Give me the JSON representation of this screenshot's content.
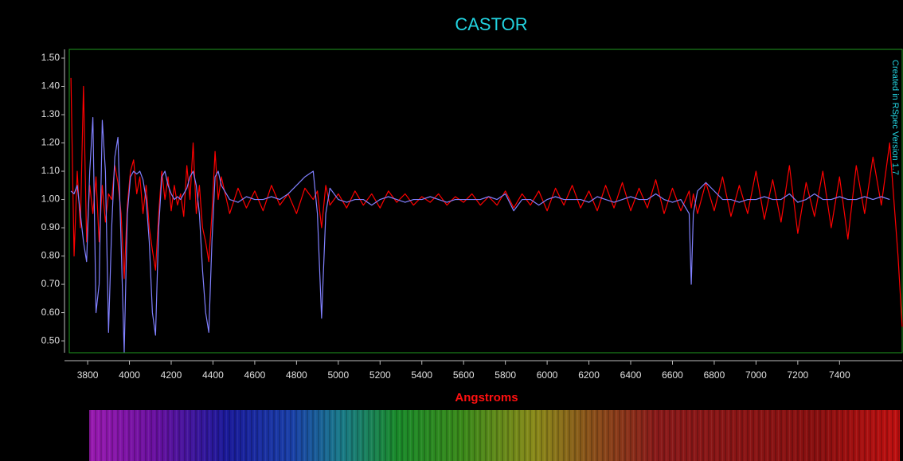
{
  "chart_data": {
    "type": "line",
    "title": "CASTOR",
    "x_label": "Angstroms",
    "annotation": "Created in RSpec Version 1.7",
    "x": [
      3720,
      3735,
      3750,
      3765,
      3780,
      3795,
      3810,
      3825,
      3840,
      3855,
      3870,
      3885,
      3900,
      3915,
      3930,
      3945,
      3960,
      3975,
      3990,
      4005,
      4020,
      4035,
      4050,
      4065,
      4080,
      4095,
      4110,
      4125,
      4140,
      4155,
      4170,
      4185,
      4200,
      4215,
      4230,
      4245,
      4260,
      4275,
      4290,
      4305,
      4320,
      4335,
      4350,
      4365,
      4380,
      4395,
      4410,
      4425,
      4440,
      4480,
      4520,
      4560,
      4600,
      4640,
      4680,
      4720,
      4760,
      4800,
      4840,
      4880,
      4900,
      4920,
      4940,
      4960,
      5000,
      5040,
      5080,
      5120,
      5160,
      5200,
      5240,
      5280,
      5320,
      5360,
      5400,
      5440,
      5480,
      5520,
      5560,
      5600,
      5640,
      5680,
      5720,
      5760,
      5800,
      5840,
      5880,
      5920,
      5960,
      6000,
      6040,
      6080,
      6120,
      6160,
      6200,
      6240,
      6280,
      6320,
      6360,
      6400,
      6440,
      6480,
      6520,
      6560,
      6600,
      6640,
      6680,
      6690,
      6700,
      6720,
      6760,
      6800,
      6840,
      6880,
      6920,
      6960,
      7000,
      7040,
      7080,
      7120,
      7160,
      7200,
      7240,
      7280,
      7320,
      7360,
      7400,
      7440,
      7480,
      7520,
      7560,
      7600,
      7640,
      7680,
      7700
    ],
    "series": [
      {
        "color": "#ff0000",
        "values": [
          1.43,
          0.8,
          1.1,
          0.9,
          1.4,
          0.85,
          1.05,
          0.95,
          1.08,
          0.85,
          1.05,
          0.92,
          1.02,
          1.0,
          1.12,
          1.06,
          0.95,
          0.72,
          0.98,
          1.1,
          1.14,
          1.02,
          1.08,
          0.95,
          1.05,
          0.9,
          0.82,
          0.75,
          0.95,
          1.1,
          1.0,
          1.08,
          0.96,
          1.05,
          0.98,
          1.02,
          0.94,
          1.12,
          1.0,
          1.2,
          0.95,
          1.05,
          0.9,
          0.85,
          0.78,
          0.95,
          1.17,
          1.0,
          1.08,
          0.95,
          1.04,
          0.97,
          1.03,
          0.96,
          1.05,
          0.98,
          1.02,
          0.95,
          1.04,
          1.0,
          1.03,
          0.9,
          1.05,
          0.98,
          1.02,
          0.97,
          1.03,
          0.98,
          1.02,
          0.97,
          1.03,
          0.99,
          1.02,
          0.98,
          1.01,
          0.99,
          1.02,
          0.98,
          1.01,
          0.99,
          1.02,
          0.98,
          1.01,
          0.98,
          1.03,
          0.97,
          1.02,
          0.98,
          1.03,
          0.96,
          1.04,
          0.98,
          1.05,
          0.97,
          1.03,
          0.96,
          1.05,
          0.97,
          1.06,
          0.96,
          1.04,
          0.97,
          1.07,
          0.95,
          1.04,
          0.96,
          1.03,
          0.97,
          1.02,
          0.95,
          1.06,
          0.96,
          1.08,
          0.94,
          1.05,
          0.95,
          1.1,
          0.93,
          1.07,
          0.92,
          1.12,
          0.88,
          1.06,
          0.94,
          1.1,
          0.9,
          1.08,
          0.86,
          1.12,
          0.95,
          1.15,
          0.98,
          1.2,
          0.8,
          0.55
        ]
      },
      {
        "color": "#8080ff",
        "values": [
          1.03,
          1.02,
          1.05,
          0.95,
          0.85,
          0.78,
          1.1,
          1.29,
          0.6,
          0.7,
          1.28,
          1.1,
          0.53,
          0.9,
          1.15,
          1.22,
          0.85,
          0.46,
          0.95,
          1.08,
          1.1,
          1.09,
          1.1,
          1.07,
          1.0,
          0.85,
          0.6,
          0.52,
          0.9,
          1.08,
          1.1,
          1.05,
          1.02,
          1.0,
          1.01,
          1.0,
          1.02,
          1.04,
          1.08,
          1.1,
          1.05,
          0.95,
          0.75,
          0.6,
          0.53,
          0.85,
          1.08,
          1.1,
          1.05,
          1.0,
          0.99,
          1.01,
          1.0,
          1.0,
          1.01,
          1.0,
          1.02,
          1.05,
          1.08,
          1.1,
          0.95,
          0.58,
          0.95,
          1.04,
          1.0,
          0.99,
          1.0,
          1.0,
          0.98,
          1.0,
          1.01,
          1.0,
          0.99,
          1.0,
          1.0,
          1.01,
          1.0,
          0.99,
          1.0,
          1.0,
          1.0,
          1.0,
          1.01,
          1.0,
          1.02,
          0.96,
          1.0,
          1.0,
          0.98,
          1.0,
          1.01,
          1.0,
          1.0,
          1.0,
          0.99,
          1.01,
          1.0,
          0.99,
          1.0,
          1.01,
          1.0,
          1.0,
          1.02,
          1.0,
          0.99,
          1.0,
          0.95,
          0.7,
          0.95,
          1.03,
          1.06,
          1.03,
          1.0,
          1.0,
          0.99,
          1.0,
          1.0,
          1.01,
          1.0,
          1.0,
          1.02,
          0.99,
          1.0,
          1.02,
          1.0,
          1.0,
          1.01,
          1.0,
          1.0,
          1.01,
          1.0,
          1.01,
          1.0,
          null,
          null
        ]
      }
    ],
    "xlim": [
      3712,
      7700
    ],
    "ylim": [
      0.458,
      1.531
    ],
    "xticks": [
      3800,
      4000,
      4200,
      4400,
      4600,
      4800,
      5000,
      5200,
      5400,
      5600,
      5800,
      6000,
      6200,
      6400,
      6600,
      6800,
      7000,
      7200,
      7400
    ],
    "yticks": [
      {
        "value": 0.5,
        "label": "0.50"
      },
      {
        "value": 0.6,
        "label": "0.60"
      },
      {
        "value": 0.7,
        "label": "0.70"
      },
      {
        "value": 0.8,
        "label": "0.80"
      },
      {
        "value": 0.9,
        "label": "0.90"
      },
      {
        "value": 1.0,
        "label": "1.00"
      },
      {
        "value": 1.1,
        "label": "1.10"
      },
      {
        "value": 1.2,
        "label": "1.20"
      },
      {
        "value": 1.3,
        "label": "1.30"
      },
      {
        "value": 1.4,
        "label": "1.40"
      },
      {
        "value": 1.5,
        "label": "1.50"
      }
    ],
    "frame_color": "#1f9a1f"
  }
}
